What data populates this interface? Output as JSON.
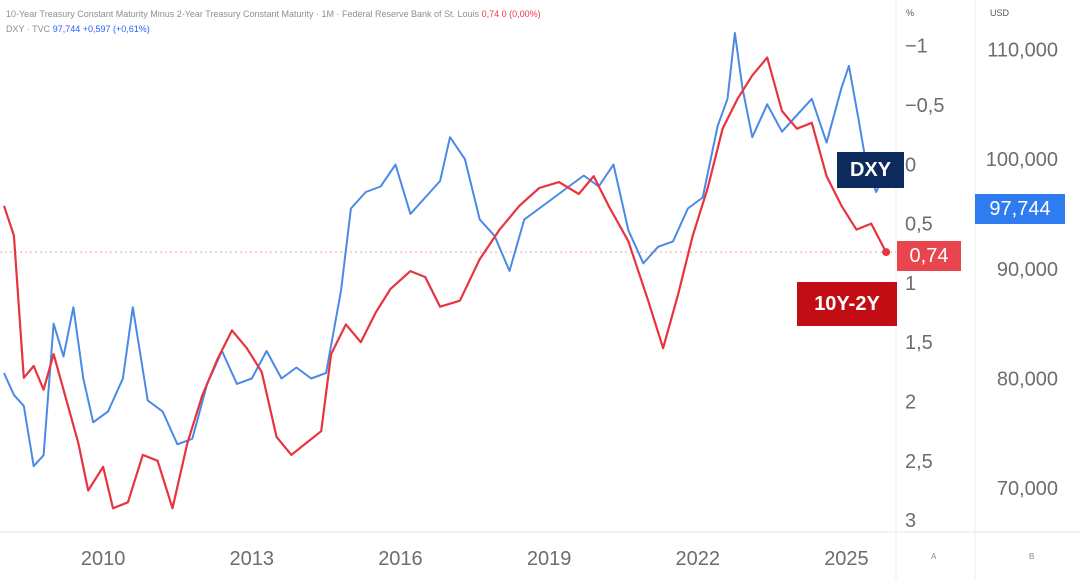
{
  "legend": {
    "series1_title": "10-Year Treasury Constant Maturity Minus 2-Year Treasury Constant Maturity · 1M · Federal Reserve Bank of St. Louis",
    "series1_value": "0,74",
    "series1_change": "0 (0,00%)",
    "series2_title": "DXY · TVC",
    "series2_value": "97,744",
    "series2_change": "+0,597 (+0,61%)"
  },
  "axis_units": {
    "left_scale": "%",
    "right_scale": "USD"
  },
  "tags": {
    "dxy": "DXY",
    "spread": "10Y-2Y"
  },
  "price_labels": {
    "dxy": "97,744",
    "spread": "0,74"
  },
  "corner_buttons": {
    "a": "A",
    "b": "B"
  },
  "colors": {
    "spread": "#e8343f",
    "dxy": "#4a8ae6",
    "tag_dxy": "#0d2a5c",
    "tag_spread": "#c20d14"
  },
  "chart_data": {
    "type": "line",
    "x_ticks": [
      "2010",
      "2013",
      "2016",
      "2019",
      "2022",
      "2025"
    ],
    "x_range": [
      2008.0,
      2026.0
    ],
    "left_axis": {
      "inverted": true,
      "range": [
        -1.2,
        3.1
      ],
      "ticks": [
        -1,
        -0.5,
        0,
        0.5,
        1,
        1.5,
        2,
        2.5,
        3
      ],
      "tick_labels": [
        "−1",
        "−0,5",
        "0",
        "0,5",
        "1",
        "1,5",
        "2",
        "2,5",
        "3"
      ]
    },
    "right_axis": {
      "range": [
        66000,
        112500
      ],
      "ticks": [
        70000,
        80000,
        90000,
        100000,
        110000
      ],
      "tick_labels": [
        "70,000",
        "80,000",
        "90,000",
        "100,000",
        "110,000"
      ]
    },
    "series": [
      {
        "name": "10Y-2Y",
        "axis": "left",
        "points": [
          [
            2008.0,
            0.35
          ],
          [
            2008.2,
            0.6
          ],
          [
            2008.4,
            1.8
          ],
          [
            2008.6,
            1.7
          ],
          [
            2008.8,
            1.9
          ],
          [
            2009.0,
            1.6
          ],
          [
            2009.2,
            1.9
          ],
          [
            2009.5,
            2.35
          ],
          [
            2009.7,
            2.75
          ],
          [
            2010.0,
            2.55
          ],
          [
            2010.2,
            2.9
          ],
          [
            2010.5,
            2.85
          ],
          [
            2010.8,
            2.45
          ],
          [
            2011.1,
            2.5
          ],
          [
            2011.4,
            2.9
          ],
          [
            2011.7,
            2.35
          ],
          [
            2012.0,
            1.95
          ],
          [
            2012.3,
            1.65
          ],
          [
            2012.6,
            1.4
          ],
          [
            2012.9,
            1.55
          ],
          [
            2013.2,
            1.75
          ],
          [
            2013.5,
            2.3
          ],
          [
            2013.8,
            2.45
          ],
          [
            2014.1,
            2.35
          ],
          [
            2014.4,
            2.25
          ],
          [
            2014.6,
            1.6
          ],
          [
            2014.9,
            1.35
          ],
          [
            2015.2,
            1.5
          ],
          [
            2015.5,
            1.25
          ],
          [
            2015.8,
            1.05
          ],
          [
            2016.2,
            0.9
          ],
          [
            2016.5,
            0.95
          ],
          [
            2016.8,
            1.2
          ],
          [
            2017.2,
            1.15
          ],
          [
            2017.6,
            0.8
          ],
          [
            2018.0,
            0.55
          ],
          [
            2018.4,
            0.35
          ],
          [
            2018.8,
            0.2
          ],
          [
            2019.2,
            0.15
          ],
          [
            2019.6,
            0.25
          ],
          [
            2019.9,
            0.1
          ],
          [
            2020.2,
            0.35
          ],
          [
            2020.6,
            0.65
          ],
          [
            2021.0,
            1.15
          ],
          [
            2021.3,
            1.55
          ],
          [
            2021.6,
            1.1
          ],
          [
            2021.9,
            0.6
          ],
          [
            2022.2,
            0.2
          ],
          [
            2022.5,
            -0.3
          ],
          [
            2022.8,
            -0.55
          ],
          [
            2023.1,
            -0.75
          ],
          [
            2023.4,
            -0.9
          ],
          [
            2023.7,
            -0.45
          ],
          [
            2024.0,
            -0.3
          ],
          [
            2024.3,
            -0.35
          ],
          [
            2024.6,
            0.1
          ],
          [
            2024.9,
            0.35
          ],
          [
            2025.2,
            0.55
          ],
          [
            2025.5,
            0.5
          ],
          [
            2025.8,
            0.74
          ]
        ]
      },
      {
        "name": "DXY",
        "axis": "right",
        "points": [
          [
            2008.0,
            80500
          ],
          [
            2008.2,
            78500
          ],
          [
            2008.4,
            77500
          ],
          [
            2008.6,
            72000
          ],
          [
            2008.8,
            73000
          ],
          [
            2009.0,
            85000
          ],
          [
            2009.2,
            82000
          ],
          [
            2009.4,
            86500
          ],
          [
            2009.6,
            80000
          ],
          [
            2009.8,
            76000
          ],
          [
            2010.1,
            77000
          ],
          [
            2010.4,
            80000
          ],
          [
            2010.6,
            86500
          ],
          [
            2010.9,
            78000
          ],
          [
            2011.2,
            77000
          ],
          [
            2011.5,
            74000
          ],
          [
            2011.8,
            74500
          ],
          [
            2012.1,
            79500
          ],
          [
            2012.4,
            82500
          ],
          [
            2012.7,
            79500
          ],
          [
            2013.0,
            80000
          ],
          [
            2013.3,
            82500
          ],
          [
            2013.6,
            80000
          ],
          [
            2013.9,
            81000
          ],
          [
            2014.2,
            80000
          ],
          [
            2014.5,
            80500
          ],
          [
            2014.8,
            88000
          ],
          [
            2015.0,
            95500
          ],
          [
            2015.3,
            97000
          ],
          [
            2015.6,
            97500
          ],
          [
            2015.9,
            99500
          ],
          [
            2016.2,
            95000
          ],
          [
            2016.5,
            96500
          ],
          [
            2016.8,
            98000
          ],
          [
            2017.0,
            102000
          ],
          [
            2017.3,
            100000
          ],
          [
            2017.6,
            94500
          ],
          [
            2017.9,
            93000
          ],
          [
            2018.2,
            89800
          ],
          [
            2018.5,
            94500
          ],
          [
            2018.8,
            95500
          ],
          [
            2019.1,
            96500
          ],
          [
            2019.4,
            97500
          ],
          [
            2019.7,
            98500
          ],
          [
            2020.0,
            97500
          ],
          [
            2020.3,
            99500
          ],
          [
            2020.6,
            93500
          ],
          [
            2020.9,
            90500
          ],
          [
            2021.2,
            92000
          ],
          [
            2021.5,
            92500
          ],
          [
            2021.8,
            95500
          ],
          [
            2022.1,
            96500
          ],
          [
            2022.4,
            103000
          ],
          [
            2022.6,
            105500
          ],
          [
            2022.75,
            111500
          ],
          [
            2022.9,
            106500
          ],
          [
            2023.1,
            102000
          ],
          [
            2023.4,
            105000
          ],
          [
            2023.7,
            102500
          ],
          [
            2024.0,
            104000
          ],
          [
            2024.3,
            105500
          ],
          [
            2024.6,
            101500
          ],
          [
            2024.9,
            106500
          ],
          [
            2025.05,
            108500
          ],
          [
            2025.25,
            103500
          ],
          [
            2025.4,
            99500
          ],
          [
            2025.6,
            97000
          ],
          [
            2025.75,
            98500
          ],
          [
            2025.9,
            97744
          ]
        ]
      }
    ]
  }
}
